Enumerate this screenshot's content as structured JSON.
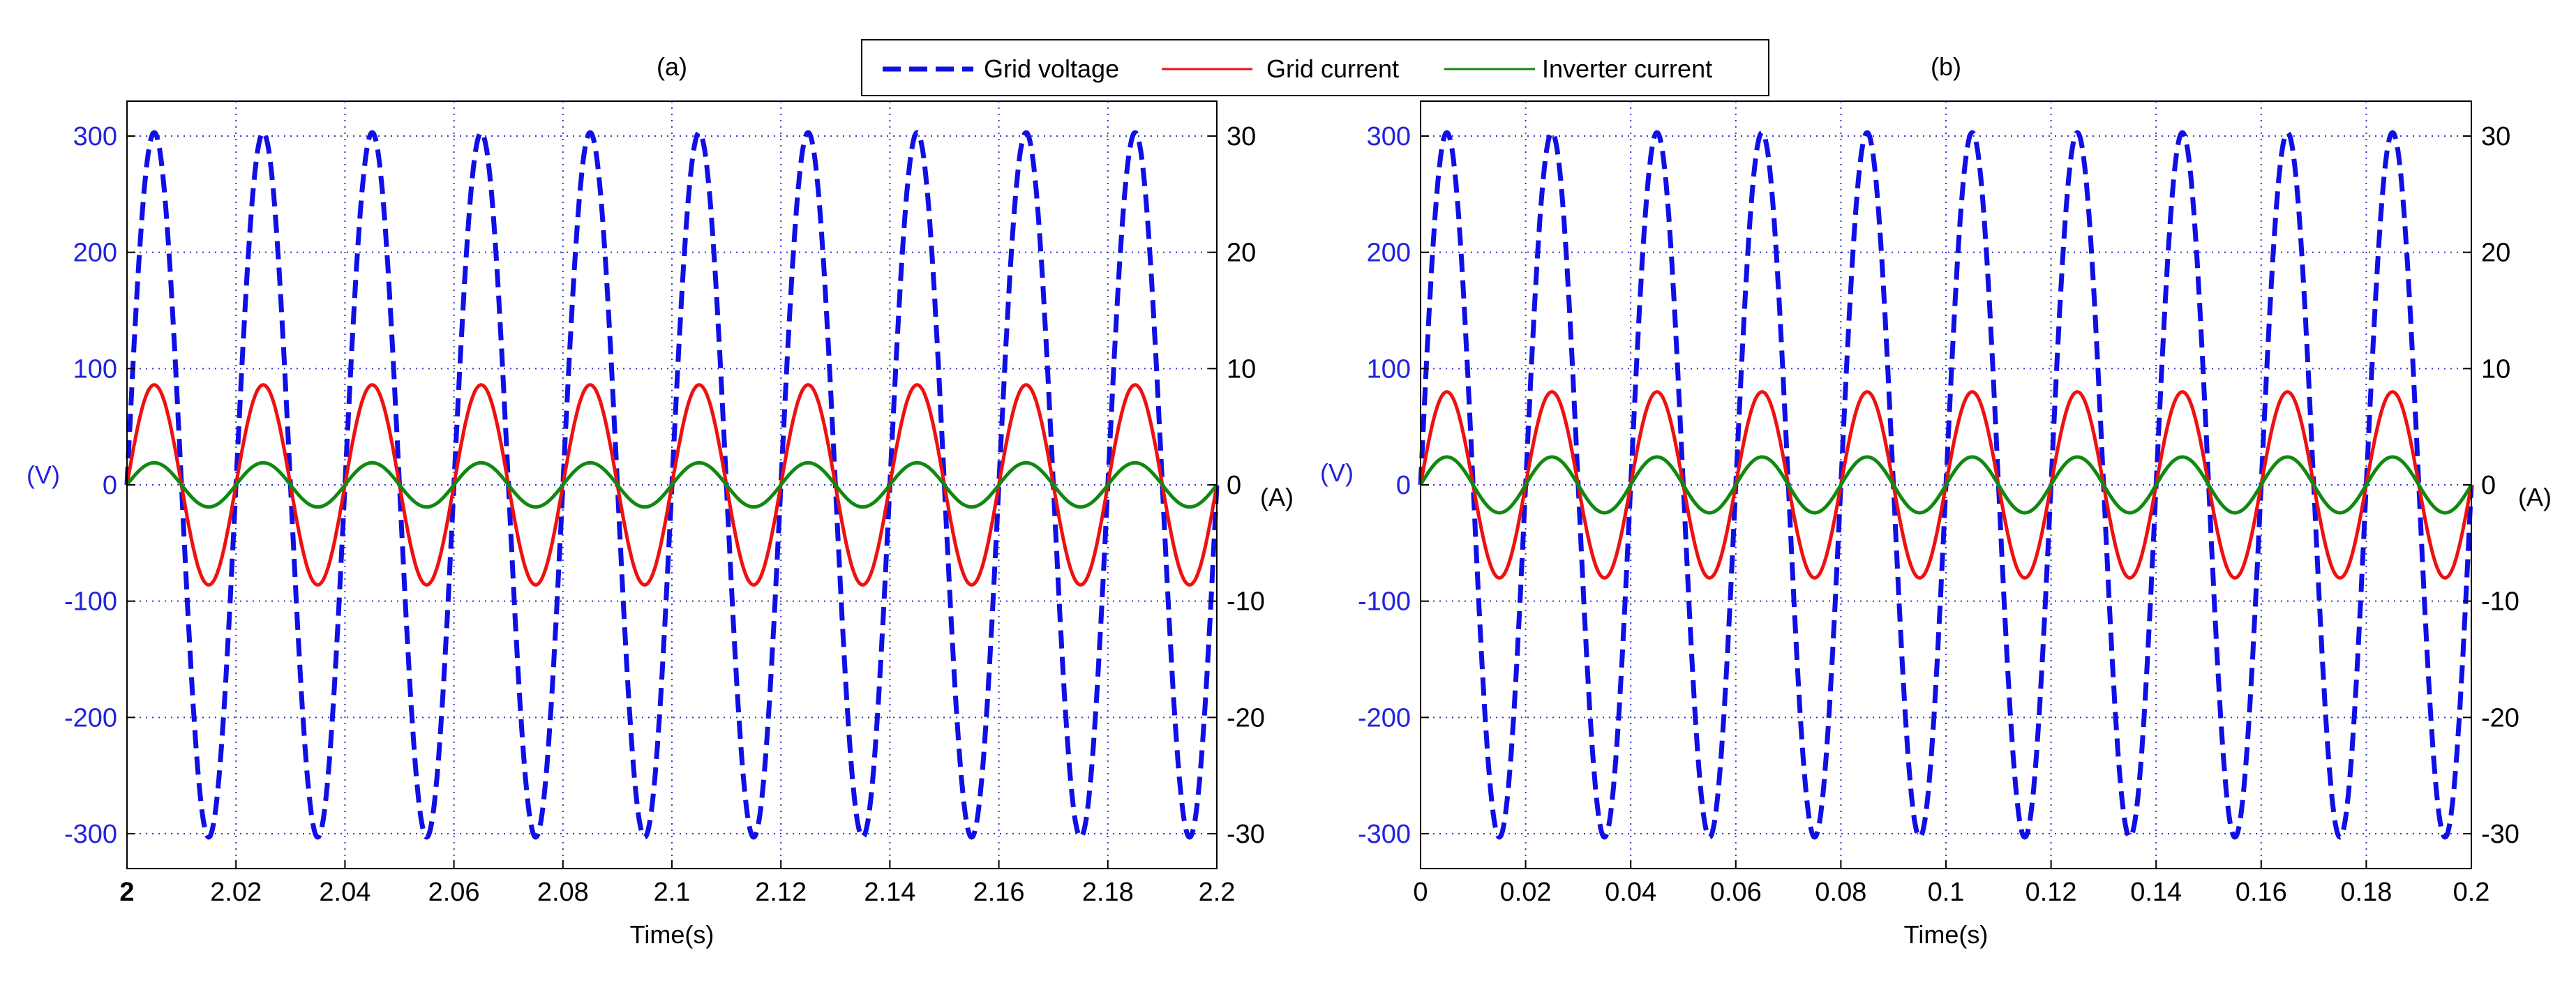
{
  "colors": {
    "voltage": "#1010e6",
    "grid_current": "#ee1111",
    "inverter_current": "#118811",
    "left_axis": "#2222dd",
    "right_axis": "#000000",
    "grid": "#3333cc"
  },
  "legend": {
    "items": [
      {
        "label": "Grid voltage",
        "style": "dashed"
      },
      {
        "label": "Grid current",
        "style": "solid"
      },
      {
        "label": "Inverter current",
        "style": "solid"
      }
    ]
  },
  "chart_data": [
    {
      "type": "line",
      "title": "(a)",
      "xlabel": "Time(s)",
      "ylabel_left": "(V)",
      "ylabel_right": "(A)",
      "xlim": [
        2.0,
        2.2
      ],
      "ylim_left": [
        -330,
        330
      ],
      "ylim_right": [
        -33,
        33
      ],
      "xticks": [
        "2",
        "2.02",
        "2.04",
        "2.06",
        "2.08",
        "2.1",
        "2.12",
        "2.14",
        "2.16",
        "2.18",
        "2.2"
      ],
      "yticks_left": [
        "300",
        "200",
        "100",
        "0",
        "-100",
        "-200",
        "-300"
      ],
      "yticks_right": [
        "30",
        "20",
        "10",
        "0",
        "-10",
        "-20",
        "-30"
      ],
      "grid": true,
      "series": [
        {
          "name": "Grid voltage",
          "axis": "left",
          "amplitude": 303,
          "frequency_hz": 50,
          "phase_rad": 0
        },
        {
          "name": "Grid current",
          "axis": "right",
          "amplitude": 8.6,
          "frequency_hz": 50,
          "phase_rad": 0
        },
        {
          "name": "Inverter current",
          "axis": "right",
          "amplitude": 1.9,
          "frequency_hz": 50,
          "phase_rad": 0
        }
      ]
    },
    {
      "type": "line",
      "title": "(b)",
      "xlabel": "Time(s)",
      "ylabel_left": "(V)",
      "ylabel_right": "(A)",
      "xlim": [
        0.0,
        0.2
      ],
      "ylim_left": [
        -330,
        330
      ],
      "ylim_right": [
        -33,
        33
      ],
      "xticks": [
        "0",
        "0.02",
        "0.04",
        "0.06",
        "0.08",
        "0.1",
        "0.12",
        "0.14",
        "0.16",
        "0.18",
        "0.2"
      ],
      "yticks_left": [
        "300",
        "200",
        "100",
        "0",
        "-100",
        "-200",
        "-300"
      ],
      "yticks_right": [
        "30",
        "20",
        "10",
        "0",
        "-10",
        "-20",
        "-30"
      ],
      "grid": true,
      "series": [
        {
          "name": "Grid voltage",
          "axis": "left",
          "amplitude": 303,
          "frequency_hz": 50,
          "phase_rad": 0
        },
        {
          "name": "Grid current",
          "axis": "right",
          "amplitude": 8.0,
          "frequency_hz": 50,
          "phase_rad": 0
        },
        {
          "name": "Inverter current",
          "axis": "right",
          "amplitude": 2.4,
          "frequency_hz": 50,
          "phase_rad": 0
        }
      ]
    }
  ]
}
